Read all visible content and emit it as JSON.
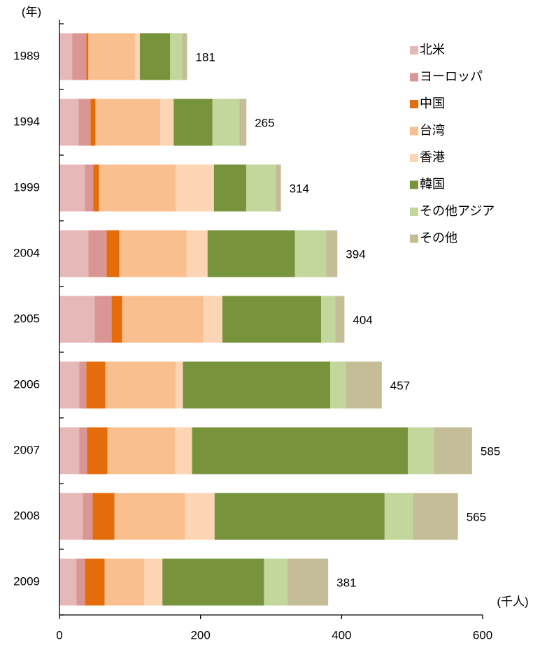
{
  "chart_data": {
    "type": "bar",
    "orientation": "horizontal",
    "stacked": true,
    "y_unit_label": "(年)",
    "x_unit_label": "(千人)",
    "categories": [
      "1989",
      "1994",
      "1999",
      "2004",
      "2005",
      "2006",
      "2007",
      "2008",
      "2009"
    ],
    "series": [
      {
        "name": "北米",
        "color": "#e6b8b7",
        "values": [
          18,
          27,
          36,
          41,
          50,
          28,
          28,
          33,
          24
        ]
      },
      {
        "name": "ヨーロッパ",
        "color": "#d99694",
        "values": [
          20,
          17,
          12,
          26,
          24,
          10,
          11,
          14,
          12
        ]
      },
      {
        "name": "中国",
        "color": "#e46c0a",
        "values": [
          3,
          7,
          8,
          18,
          15,
          27,
          29,
          31,
          28
        ]
      },
      {
        "name": "台湾",
        "color": "#fabf8f",
        "values": [
          66,
          92,
          109,
          95,
          115,
          100,
          96,
          100,
          56
        ]
      },
      {
        "name": "香港",
        "color": "#fcd5b4",
        "values": [
          7,
          19,
          54,
          30,
          27,
          10,
          24,
          42,
          26
        ]
      },
      {
        "name": "韓国",
        "color": "#77933c",
        "values": [
          43,
          55,
          46,
          124,
          140,
          209,
          306,
          241,
          144
        ]
      },
      {
        "name": "その他アジア",
        "color": "#c3d69b",
        "values": [
          17,
          38,
          42,
          44,
          20,
          22,
          37,
          40,
          33
        ]
      },
      {
        "name": "その他",
        "color": "#c4bd97",
        "values": [
          7,
          10,
          7,
          16,
          13,
          51,
          54,
          64,
          58
        ]
      }
    ],
    "totals": [
      181,
      265,
      314,
      394,
      404,
      457,
      585,
      565,
      381
    ],
    "xlim": [
      0,
      600
    ],
    "xticks": [
      0,
      200,
      400,
      600
    ],
    "legend": "top-right"
  }
}
